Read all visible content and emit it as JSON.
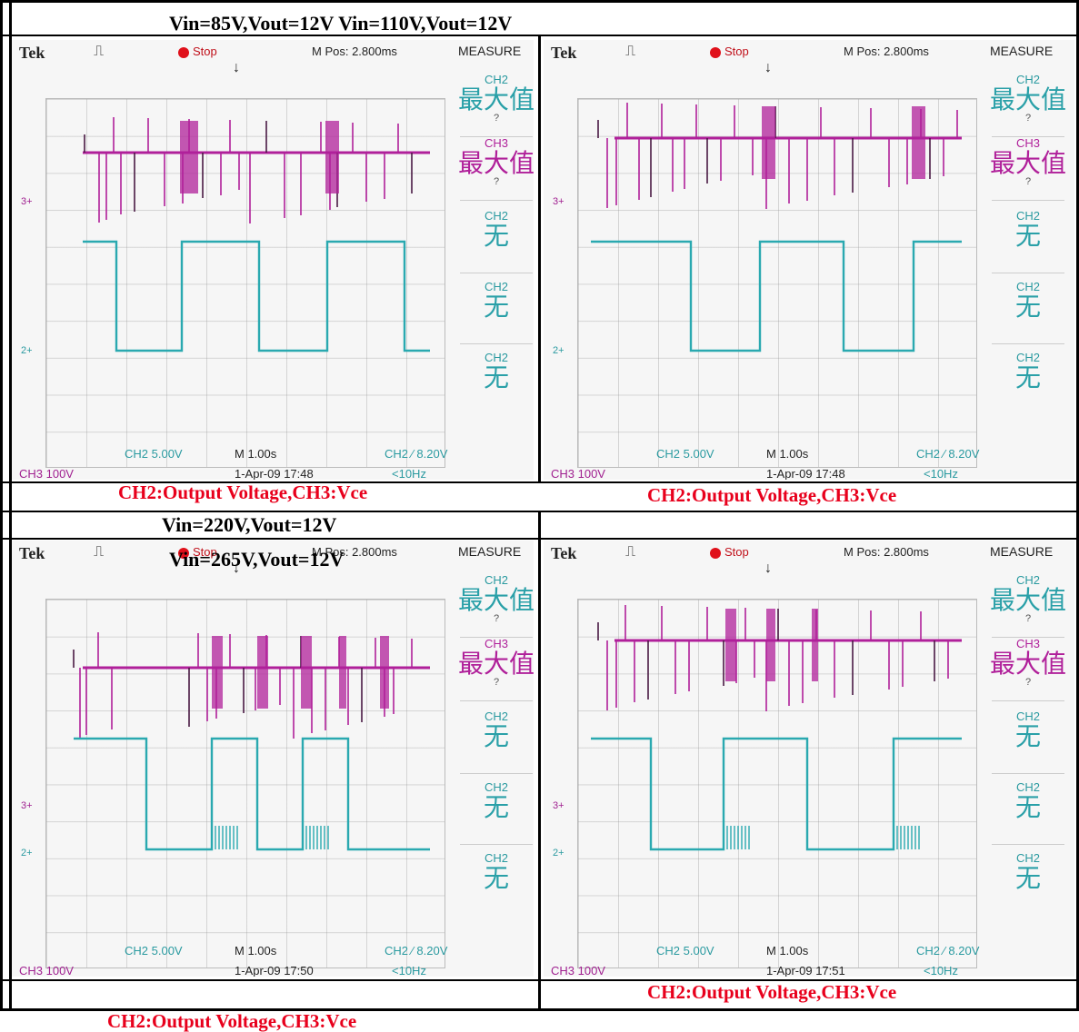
{
  "titles": {
    "row1": "Vin=85V,Vout=12V Vin=110V,Vout=12V",
    "row2_a": "Vin=220V,Vout=12V",
    "row2_b": "Vin=265V,Vout=12V"
  },
  "captions": {
    "top_left": "CH2:Output Voltage,CH3:Vce",
    "top_right": "CH2:Output Voltage,CH3:Vce",
    "bottom_right": "CH2:Output Voltage,CH3:Vce",
    "bottom_outside": "CH2:Output Voltage,CH3:Vce"
  },
  "colors": {
    "ch2": "#2aa9b0",
    "ch3": "#b0209a",
    "caption": "#e8001c"
  },
  "scopes": [
    {
      "brand": "Tek",
      "trigger_symbol": "⎍",
      "run_state": "Stop",
      "mpos": "M Pos: 2.800ms",
      "measure_title": "MEASURE",
      "measure_items": [
        {
          "ch": "CH2",
          "value": "最大值",
          "q": "?"
        },
        {
          "ch": "CH3",
          "value": "最大值",
          "q": "?"
        },
        {
          "ch": "CH2",
          "value": "无"
        },
        {
          "ch": "CH2",
          "value": "无"
        },
        {
          "ch": "CH2",
          "value": "无"
        }
      ],
      "ch2_scale": "CH2  5.00V",
      "time_scale": "M 1.00s",
      "trig_info": "CH2  ⁄  8.20V",
      "ch3_scale": "CH3  100V",
      "datetime": "1-Apr-09 17:48",
      "freq": "<10Hz",
      "markers": {
        "m3": "3+",
        "m2": "2+"
      }
    },
    {
      "brand": "Tek",
      "trigger_symbol": "⎍",
      "run_state": "Stop",
      "mpos": "M Pos: 2.800ms",
      "measure_title": "MEASURE",
      "measure_items": [
        {
          "ch": "CH2",
          "value": "最大值",
          "q": "?"
        },
        {
          "ch": "CH3",
          "value": "最大值",
          "q": "?"
        },
        {
          "ch": "CH2",
          "value": "无"
        },
        {
          "ch": "CH2",
          "value": "无"
        },
        {
          "ch": "CH2",
          "value": "无"
        }
      ],
      "ch2_scale": "CH2  5.00V",
      "time_scale": "M 1.00s",
      "trig_info": "CH2  ⁄  8.20V",
      "ch3_scale": "CH3  100V",
      "datetime": "1-Apr-09 17:48",
      "freq": "<10Hz",
      "markers": {
        "m3": "3+",
        "m2": "2+"
      }
    },
    {
      "brand": "Tek",
      "trigger_symbol": "⎍",
      "run_state": "Stop",
      "mpos": "M Pos: 2.800ms",
      "measure_title": "MEASURE",
      "measure_items": [
        {
          "ch": "CH2",
          "value": "最大值",
          "q": "?"
        },
        {
          "ch": "CH3",
          "value": "最大值",
          "q": "?"
        },
        {
          "ch": "CH2",
          "value": "无"
        },
        {
          "ch": "CH2",
          "value": "无"
        },
        {
          "ch": "CH2",
          "value": "无"
        }
      ],
      "ch2_scale": "CH2  5.00V",
      "time_scale": "M 1.00s",
      "trig_info": "CH2  ⁄  8.20V",
      "ch3_scale": "CH3  100V",
      "datetime": "1-Apr-09 17:50",
      "freq": "<10Hz",
      "markers": {
        "m3": "3+",
        "m2": "2+"
      }
    },
    {
      "brand": "Tek",
      "trigger_symbol": "⎍",
      "run_state": "Stop",
      "mpos": "M Pos: 2.800ms",
      "measure_title": "MEASURE",
      "measure_items": [
        {
          "ch": "CH2",
          "value": "最大值",
          "q": "?"
        },
        {
          "ch": "CH3",
          "value": "最大值",
          "q": "?"
        },
        {
          "ch": "CH2",
          "value": "无"
        },
        {
          "ch": "CH2",
          "value": "无"
        },
        {
          "ch": "CH2",
          "value": "无"
        }
      ],
      "ch2_scale": "CH2  5.00V",
      "time_scale": "M 1.00s",
      "trig_info": "CH2  ⁄  8.20V",
      "ch3_scale": "CH3  100V",
      "datetime": "1-Apr-09 17:51",
      "freq": "<10Hz",
      "markers": {
        "m3": "3+",
        "m2": "2+"
      }
    }
  ]
}
